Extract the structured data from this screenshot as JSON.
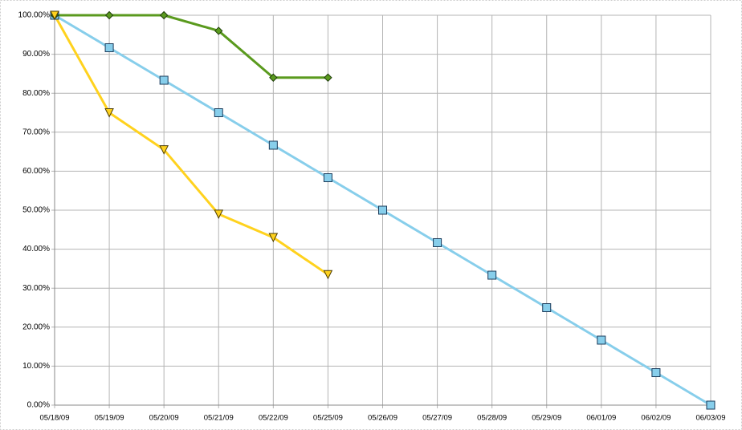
{
  "chart_data": {
    "type": "line",
    "categories": [
      "05/18/09",
      "05/19/09",
      "05/20/09",
      "05/21/09",
      "05/22/09",
      "05/25/09",
      "05/26/09",
      "05/27/09",
      "05/28/09",
      "05/29/09",
      "06/01/09",
      "06/02/09",
      "06/03/09"
    ],
    "series": [
      {
        "color": "#87ceeb",
        "marker": "square",
        "values": [
          100,
          91.67,
          83.33,
          75,
          66.67,
          58.33,
          50,
          41.67,
          33.33,
          25,
          16.67,
          8.33,
          0
        ]
      },
      {
        "color": "#5a9a1e",
        "marker": "diamond",
        "values": [
          100,
          100,
          100,
          96,
          84,
          84,
          null,
          null,
          null,
          null,
          null,
          null,
          null
        ]
      },
      {
        "color": "#ffd21e",
        "marker": "triangle-down",
        "values": [
          100,
          75,
          65.5,
          49,
          43,
          33.5,
          null,
          null,
          null,
          null,
          null,
          null,
          null
        ]
      }
    ],
    "ylim": [
      0,
      100
    ],
    "yticks": [
      {
        "value": 0,
        "label": "0.00%"
      },
      {
        "value": 10,
        "label": "10.00%"
      },
      {
        "value": 20,
        "label": "20.00%"
      },
      {
        "value": 30,
        "label": "30.00%"
      },
      {
        "value": 40,
        "label": "40.00%"
      },
      {
        "value": 50,
        "label": "50.00%"
      },
      {
        "value": 60,
        "label": "60.00%"
      },
      {
        "value": 70,
        "label": "70.00%"
      },
      {
        "value": 80,
        "label": "80.00%"
      },
      {
        "value": 90,
        "label": "90.00%"
      },
      {
        "value": 100,
        "label": "100.00%"
      }
    ],
    "grid": true
  }
}
